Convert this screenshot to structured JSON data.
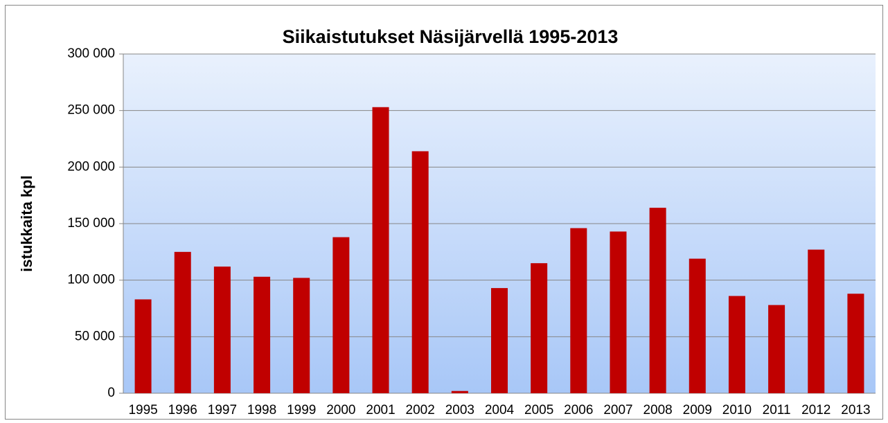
{
  "chart_data": {
    "type": "bar",
    "title": "Siikaistutukset Näsijärvellä 1995-2013",
    "y_label": "istukkaita kpl",
    "categories": [
      "1995",
      "1996",
      "1997",
      "1998",
      "1999",
      "2000",
      "2001",
      "2002",
      "2003",
      "2004",
      "2005",
      "2006",
      "2007",
      "2008",
      "2009",
      "2010",
      "2011",
      "2012",
      "2013"
    ],
    "values": [
      83000,
      125000,
      112000,
      103000,
      102000,
      138000,
      253000,
      214000,
      2000,
      93000,
      115000,
      146000,
      143000,
      164000,
      119000,
      86000,
      78000,
      127000,
      88000
    ],
    "color": "#c00000",
    "ylim": [
      0,
      300000
    ],
    "yticks": [
      0,
      {
        "value": 50000,
        "label": "50 000"
      },
      {
        "value": 100000,
        "label": "100 000"
      },
      {
        "value": 150000,
        "label": "150 000"
      },
      {
        "value": 200000,
        "label": "200 000"
      },
      {
        "value": 250000,
        "label": "250 000"
      },
      {
        "value": 300000,
        "label": "300 000"
      }
    ],
    "grid": true
  }
}
